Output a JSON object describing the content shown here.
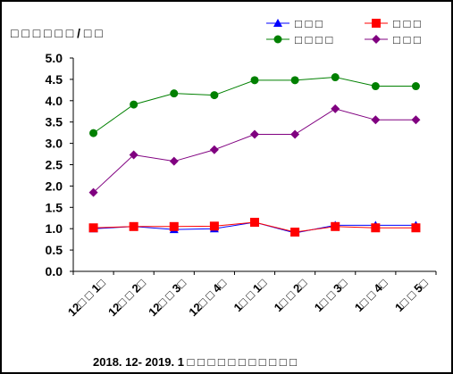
{
  "chart_data": {
    "type": "line",
    "title": "2018. 12- 2019. 1 □ □ □ □ □ □ □ □ □ □ □",
    "ylabel": "□ □ □ □ □ □ / □ □",
    "xlabel": "",
    "ylim": [
      0,
      5
    ],
    "yticks": [
      "5.0",
      "4.5",
      "4.0",
      "3.5",
      "3.0",
      "2.5",
      "2.0",
      "1.5",
      "1.0",
      "0.5",
      "0.0"
    ],
    "categories": [
      "12□ □ 1□",
      "12□ □ 2□",
      "12□ □ 3□",
      "12□ □ 4□",
      "1□ □ 1□",
      "1□ □ 2□",
      "1□ □ 3□",
      "1□ □ 4□",
      "1□ □ 5□"
    ],
    "legend_position": "top-right",
    "grid": false,
    "series": [
      {
        "name": "□ □ □",
        "color": "#0000ff",
        "marker": "triangle",
        "values": [
          1.0,
          1.05,
          0.98,
          1.0,
          1.15,
          0.9,
          1.08,
          1.08,
          1.08
        ]
      },
      {
        "name": "□ □ □",
        "color": "#ff0000",
        "marker": "square",
        "values": [
          1.02,
          1.05,
          1.05,
          1.06,
          1.15,
          0.92,
          1.05,
          1.02,
          1.02
        ]
      },
      {
        "name": "□ □ □ □",
        "color": "#008000",
        "marker": "circle",
        "values": [
          3.24,
          3.91,
          4.17,
          4.13,
          4.48,
          4.48,
          4.55,
          4.34,
          4.34
        ]
      },
      {
        "name": "□ □ □",
        "color": "#800080",
        "marker": "diamond",
        "values": [
          1.85,
          2.73,
          2.58,
          2.85,
          3.21,
          3.21,
          3.81,
          3.55,
          3.55
        ]
      }
    ]
  }
}
